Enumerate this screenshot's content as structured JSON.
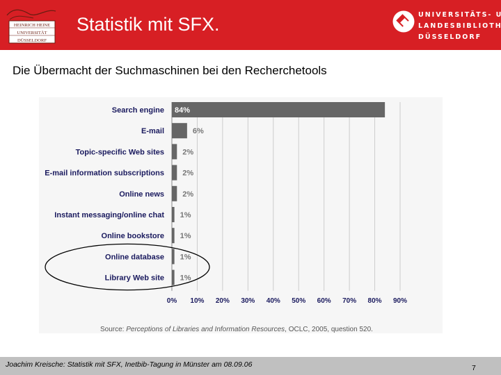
{
  "slide": {
    "title": "Statistik mit SFX.",
    "subtitle": "Die Übermacht der Suchmaschinen bei den Recherchetools"
  },
  "header": {
    "logo_left_lines": [
      "HEINRICH HEINE",
      "UNIVERSITÄT",
      "DÜSSELDORF"
    ],
    "logo_right_lines": [
      "UNIVERSITÄTS- UND",
      "LANDESBIBLIOTHEK",
      "DÜSSELDORF"
    ]
  },
  "footer": {
    "text": "Joachim Kreische: Statistik mit SFX, Inetbib-Tagung in Münster am 08.09.06",
    "page_number": "7"
  },
  "colors": {
    "header_red": "#d71f24",
    "bar_dark": "#666666",
    "label_blue": "#1a1a5e",
    "grid": "#cccccc",
    "ellipse": "#000000"
  },
  "chart_data": {
    "type": "bar",
    "orientation": "horizontal",
    "categories": [
      "Search engine",
      "E-mail",
      "Topic-specific Web sites",
      "E-mail information subscriptions",
      "Online news",
      "Instant messaging/online chat",
      "Online bookstore",
      "Online database",
      "Library Web site"
    ],
    "values": [
      84,
      6,
      2,
      2,
      2,
      1,
      1,
      1,
      1
    ],
    "value_labels": [
      "84%",
      "6%",
      "2%",
      "2%",
      "2%",
      "1%",
      "1%",
      "1%",
      "1%"
    ],
    "xticks": [
      0,
      10,
      20,
      30,
      40,
      50,
      60,
      70,
      80,
      90
    ],
    "xtick_labels": [
      "0%",
      "10%",
      "20%",
      "30%",
      "40%",
      "50%",
      "60%",
      "70%",
      "80%",
      "90%"
    ],
    "xlim": [
      0,
      90
    ],
    "grid": true,
    "highlighted_categories": [
      "Online database",
      "Library Web site"
    ],
    "source_prefix": "Source: ",
    "source_title": "Perceptions of Libraries and Information Resources",
    "source_rest": ", OCLC, 2005, question 520."
  }
}
